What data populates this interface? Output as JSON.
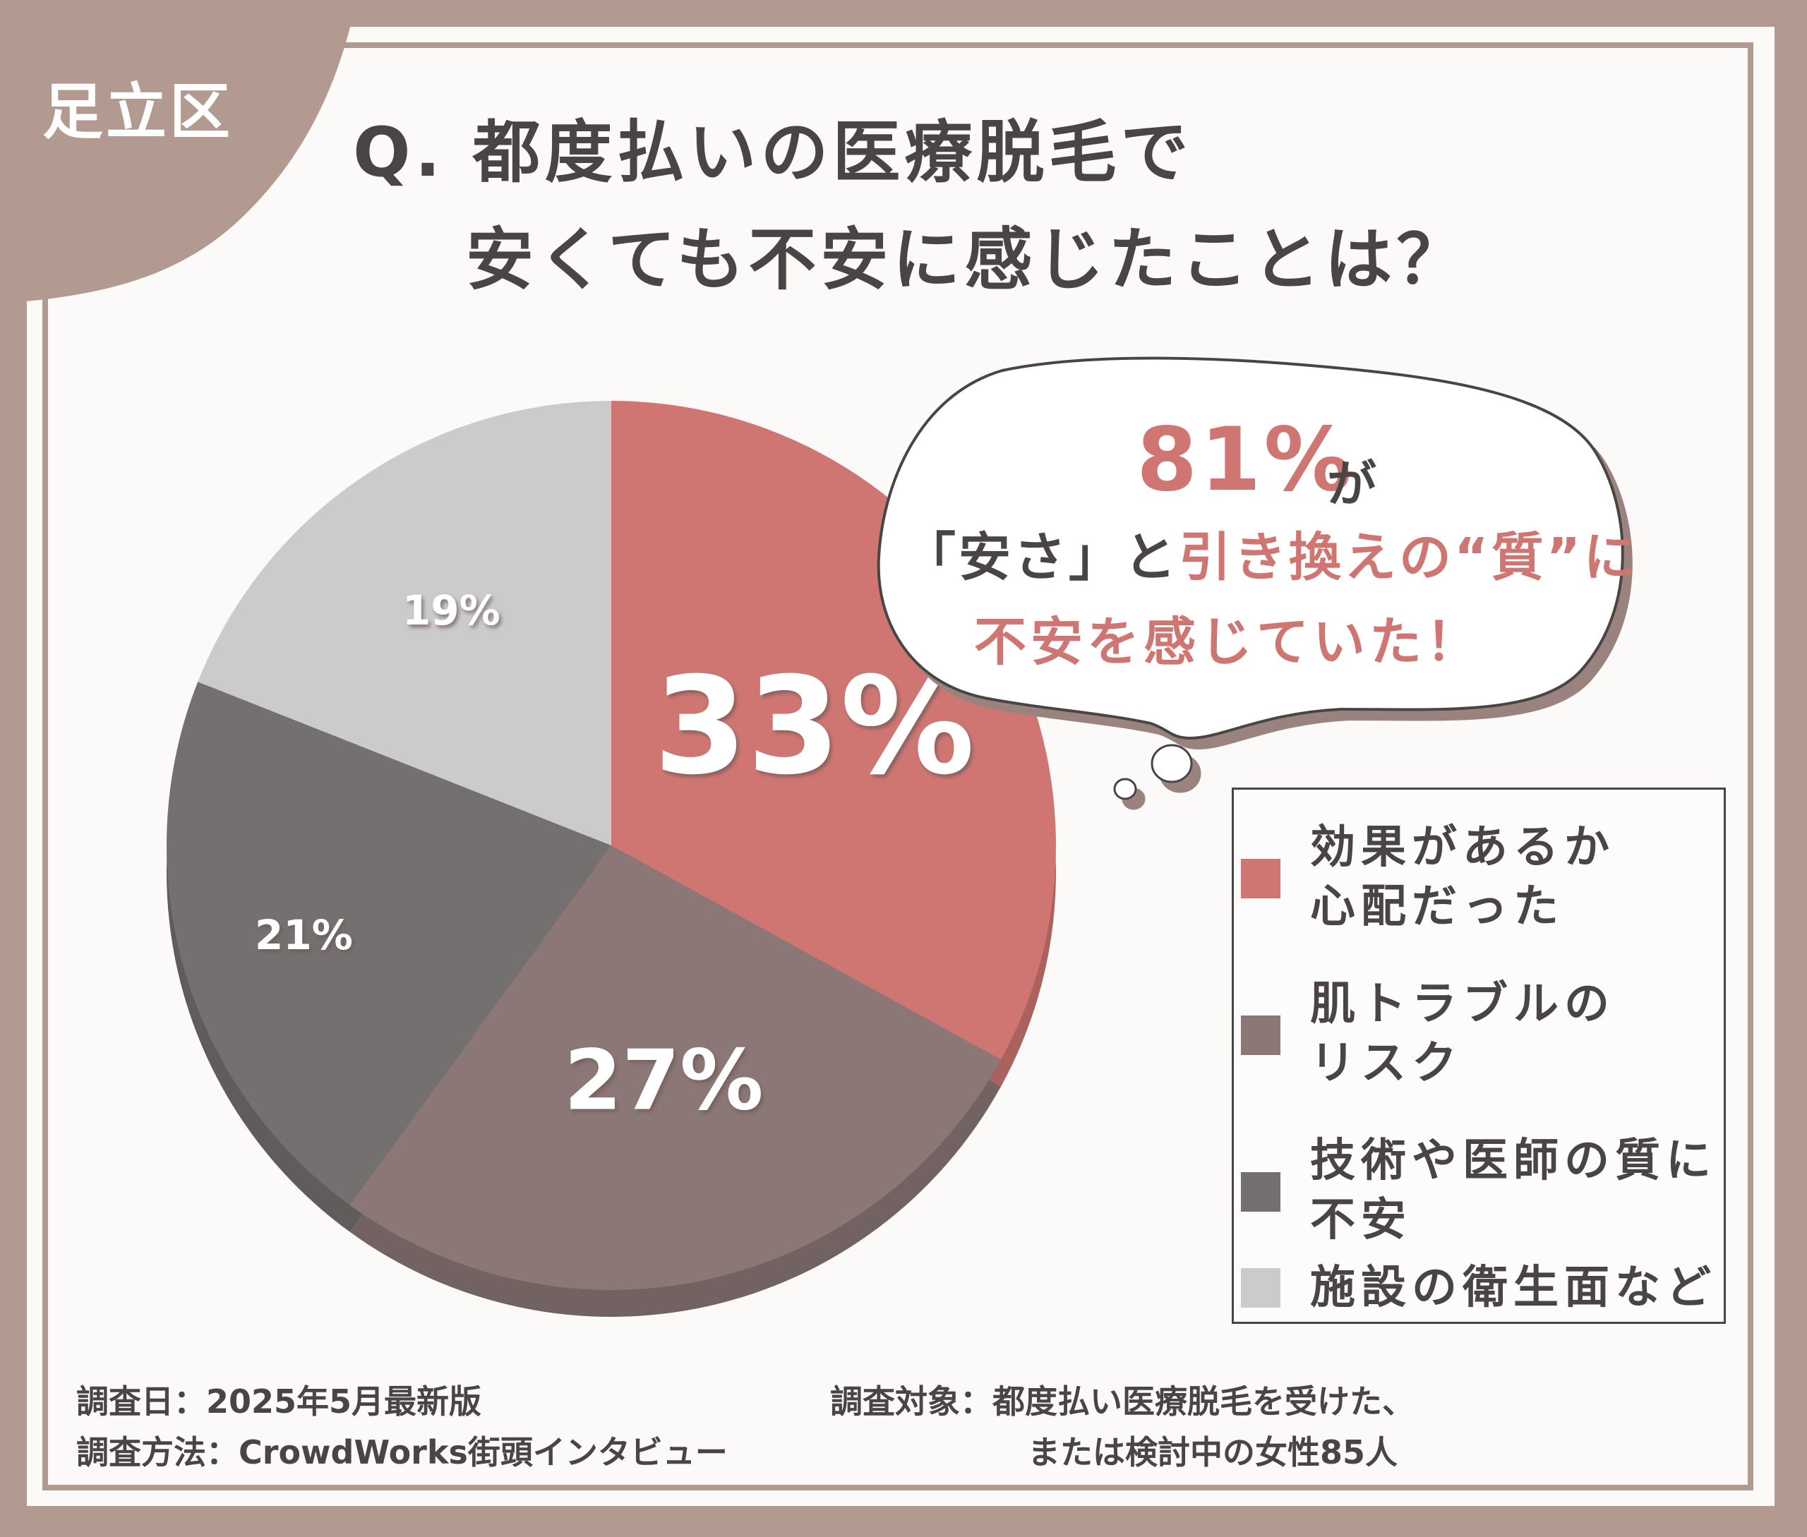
{
  "region": "足立区",
  "title": {
    "line1": "Q. 都度払いの医療脱毛で",
    "line2": "安くても不安に感じたことは？"
  },
  "callout": {
    "percent": "81%",
    "ga": "が",
    "line2_dark": "「安さ」と",
    "line2_accent": "引き換えの“質”に",
    "line3": "不安を感じていた！"
  },
  "chart_data": {
    "type": "pie",
    "categories": [
      "効果があるか心配だった",
      "肌トラブルのリスク",
      "技術や医師の質に不安",
      "施設の衛生面など"
    ],
    "values": [
      33,
      27,
      21,
      19
    ],
    "value_labels": [
      "33%",
      "27%",
      "21%",
      "19%"
    ],
    "colors": [
      "#d07672",
      "#8b7776",
      "#757070",
      "#cccbcb"
    ]
  },
  "legend": [
    {
      "label": "効果があるか\n心配だった",
      "color": "#d07672"
    },
    {
      "label": "肌トラブルの\nリスク",
      "color": "#8b7776"
    },
    {
      "label": "技術や医師の質に\n不安",
      "color": "#757070"
    },
    {
      "label": "施設の衛生面など",
      "color": "#cccbcb"
    }
  ],
  "footer": {
    "date": "調査日：2025年5月最新版",
    "method": "調査方法：CrowdWorks街頭インタビュー",
    "target_line1": "調査対象：都度払い医療脱毛を受けた、",
    "target_line2": "または検討中の女性85人"
  }
}
